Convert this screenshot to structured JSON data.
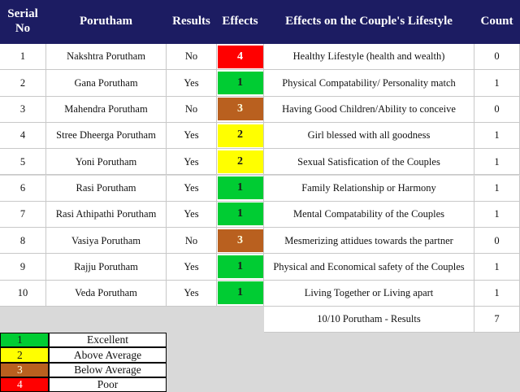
{
  "table": {
    "header": [
      "Serial No",
      "Porutham",
      "Results",
      "Effects",
      "Effects on the Couple's Lifestyle",
      "Count"
    ],
    "rows": [
      [
        "1",
        "Nakshtra Porutham",
        "No",
        "4",
        "Healthy Lifestyle (health and wealth)",
        "0"
      ],
      [
        "2",
        "Gana Porutham",
        "Yes",
        "1",
        "Physical Compatability/ Personality match",
        "1"
      ],
      [
        "3",
        "Mahendra Porutham",
        "No",
        "3",
        "Having Good Children/Ability to conceive",
        "0"
      ],
      [
        "4",
        "Stree Dheerga Porutham",
        "Yes",
        "2",
        "Girl blessed with all goodness",
        "1"
      ],
      [
        "5",
        "Yoni Porutham",
        "Yes",
        "2",
        "Sexual Satisfication of the Couples",
        "1"
      ],
      [
        "6",
        "Rasi Porutham",
        "Yes",
        "1",
        "Family Relationship or Harmony",
        "1"
      ],
      [
        "7",
        "Rasi Athipathi Porutham",
        "Yes",
        "1",
        "Mental Compatability of the Couples",
        "1"
      ],
      [
        "8",
        "Vasiya Porutham",
        "No",
        "3",
        "Mesmerizing attidues towards the partner",
        "0"
      ],
      [
        "9",
        "Rajju Porutham",
        "Yes",
        "1",
        "Physical and Economical safety of the Couples",
        "1"
      ],
      [
        "10",
        "Veda Porutham",
        "Yes",
        "1",
        "Living Together or Living apart",
        "1"
      ]
    ],
    "summary": [
      "10/10 Porutham - Results",
      "7"
    ]
  },
  "legend": [
    {
      "code": "1",
      "label": "Excellent",
      "color": "#00cc33",
      "text_color": "#1a1a1a"
    },
    {
      "code": "2",
      "label": "Above Average",
      "color": "#ffff00",
      "text_color": "#1a1a1a"
    },
    {
      "code": "3",
      "label": "Below Average",
      "color": "#b9601f",
      "text_color": "#ffffe0"
    },
    {
      "code": "4",
      "label": "Poor",
      "color": "#ff0000",
      "text_color": "#ffffff"
    }
  ]
}
